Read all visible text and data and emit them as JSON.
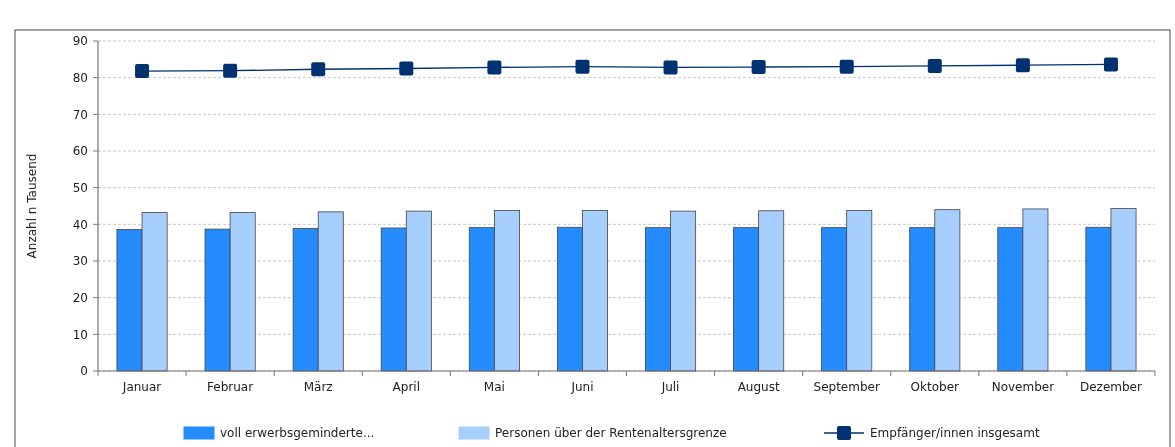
{
  "chart_data": {
    "type": "bar",
    "ylabel": "Anzahl n Tausend",
    "categories": [
      "Januar",
      "Februar",
      "März",
      "April",
      "Mai",
      "Juni",
      "Juli",
      "August",
      "September",
      "Oktober",
      "November",
      "Dezember"
    ],
    "series": [
      {
        "name": "voll erwerbsgeminderte...",
        "color": "#248cff",
        "values": [
          38.6,
          38.7,
          38.9,
          39.0,
          39.1,
          39.2,
          39.1,
          39.1,
          39.1,
          39.1,
          39.1,
          39.2
        ]
      },
      {
        "name": "Personen über der Rentenaltersgrenze",
        "color": "#a6cfff",
        "values": [
          43.2,
          43.2,
          43.4,
          43.6,
          43.8,
          43.8,
          43.6,
          43.7,
          43.8,
          44.0,
          44.2,
          44.3
        ]
      },
      {
        "name": "Empfänger/innen insgesamt",
        "type": "line",
        "color": "#003170",
        "values": [
          81.8,
          81.9,
          82.3,
          82.5,
          82.8,
          83.0,
          82.8,
          82.9,
          83.0,
          83.2,
          83.4,
          83.6
        ]
      }
    ],
    "ylim": [
      0,
      90
    ],
    "yticks": [
      0,
      10,
      20,
      30,
      40,
      50,
      60,
      70,
      80,
      90
    ],
    "grid": "y",
    "legend": "bottom",
    "marker": "square"
  }
}
